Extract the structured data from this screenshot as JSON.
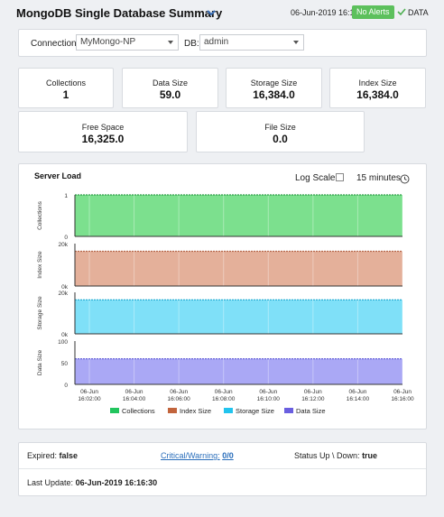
{
  "header": {
    "title": "MongoDB Single Database Summary",
    "date": "06-Jun-2019 16:16",
    "alert_badge": "No Alerts",
    "data_label": "DATA"
  },
  "filters": {
    "connection_label": "Connection:",
    "connection_value": "MyMongo-NP",
    "db_label": "DB:",
    "db_value": "admin"
  },
  "kpis": {
    "collections": {
      "label": "Collections",
      "value": "1"
    },
    "data_size": {
      "label": "Data Size",
      "value": "59.0"
    },
    "storage_size": {
      "label": "Storage Size",
      "value": "16,384.0"
    },
    "index_size": {
      "label": "Index Size",
      "value": "16,384.0"
    },
    "free_space": {
      "label": "Free Space",
      "value": "16,325.0"
    },
    "file_size": {
      "label": "File Size",
      "value": "0.0"
    }
  },
  "chart_controls": {
    "title": "Server Load",
    "log_scale_label": "Log Scale:",
    "time_range": "15 minutes"
  },
  "chart_data": {
    "type": "area",
    "x": [
      "06-Jun 16:02:00",
      "06-Jun 16:04:00",
      "06-Jun 16:06:00",
      "06-Jun 16:08:00",
      "06-Jun 16:10:00",
      "06-Jun 16:12:00",
      "06-Jun 16:14:00",
      "06-Jun 16:16:00"
    ],
    "x_ticks": [
      [
        "06-Jun",
        "16:02:00"
      ],
      [
        "06-Jun",
        "16:04:00"
      ],
      [
        "06-Jun",
        "16:06:00"
      ],
      [
        "06-Jun",
        "16:08:00"
      ],
      [
        "06-Jun",
        "16:10:00"
      ],
      [
        "06-Jun",
        "16:12:00"
      ],
      [
        "06-Jun",
        "16:14:00"
      ],
      [
        "06-Jun",
        "16:16:00"
      ]
    ],
    "panels": [
      {
        "ylabel": "Collections",
        "yticks": [
          "1",
          "0"
        ],
        "ylim": [
          0,
          1
        ],
        "color": "#7ce08e",
        "line": "#2e9e47",
        "value": 1
      },
      {
        "ylabel": "Index Size",
        "yticks": [
          "20k",
          "0k"
        ],
        "ylim": [
          0,
          20000
        ],
        "color": "#e4b09a",
        "line": "#b5674a",
        "value": 16384
      },
      {
        "ylabel": "Storage Size",
        "yticks": [
          "20k",
          "0k"
        ],
        "ylim": [
          0,
          20000
        ],
        "color": "#7fe0f8",
        "line": "#1aa8d0",
        "value": 16384
      },
      {
        "ylabel": "Data Size",
        "yticks": [
          "100",
          "50",
          "0"
        ],
        "ylim": [
          0,
          100
        ],
        "color": "#aaa8f5",
        "line": "#5b58d6",
        "value": 59
      }
    ],
    "legend": [
      {
        "name": "Collections",
        "color": "#22c55e"
      },
      {
        "name": "Index Size",
        "color": "#c2643c"
      },
      {
        "name": "Storage Size",
        "color": "#22c4ee"
      },
      {
        "name": "Data Size",
        "color": "#6a5fe0"
      }
    ]
  },
  "status": {
    "expired_label": "Expired:",
    "expired_value": "false",
    "critical_label": "Critical/Warning:",
    "critical_value": "0/0",
    "status_label": "Status Up \\ Down:",
    "status_value": "true",
    "last_update_label": "Last Update:",
    "last_update_value": "06-Jun-2019 16:16:30"
  }
}
